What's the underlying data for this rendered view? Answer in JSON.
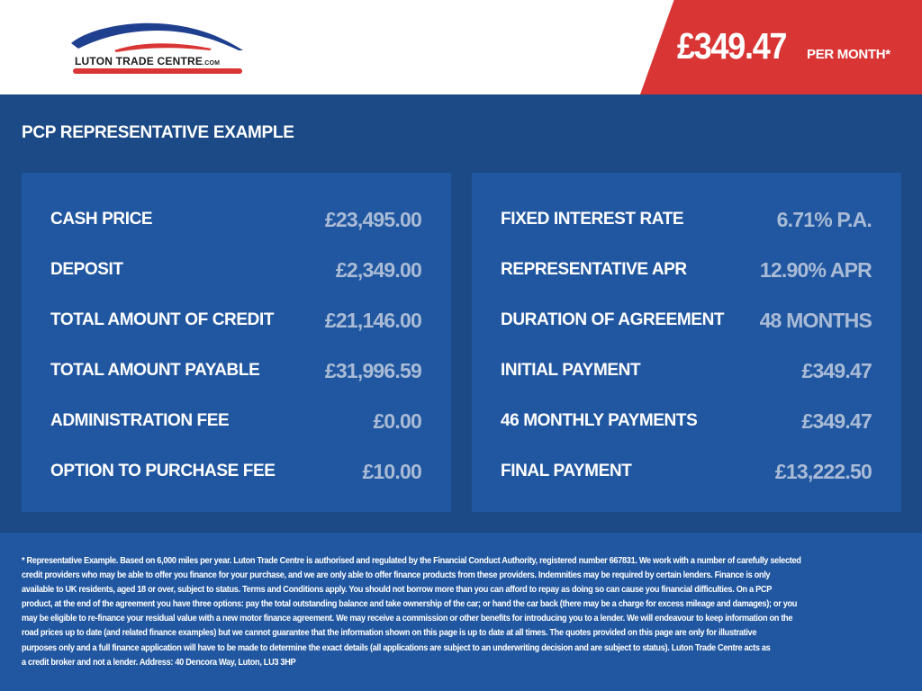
{
  "header": {
    "logo_text": "LUTON TRADE CENTRE",
    "logo_suffix": ".COM",
    "price": "£349.47",
    "price_suffix": "PER MONTH*",
    "accent": "#d93535",
    "brand": "#1c4a86"
  },
  "title": "PCP REPRESENTATIVE EXAMPLE",
  "left_rows": [
    {
      "label": "CASH PRICE",
      "value": "£23,495.00"
    },
    {
      "label": "DEPOSIT",
      "value": "£2,349.00"
    },
    {
      "label": "TOTAL AMOUNT OF CREDIT",
      "value": "£21,146.00"
    },
    {
      "label": "TOTAL AMOUNT PAYABLE",
      "value": "£31,996.59"
    },
    {
      "label": "ADMINISTRATION FEE",
      "value": "£0.00"
    },
    {
      "label": "OPTION TO PURCHASE FEE",
      "value": "£10.00"
    }
  ],
  "right_rows": [
    {
      "label": "FIXED INTEREST RATE",
      "value": "6.71% P.A."
    },
    {
      "label": "REPRESENTATIVE APR",
      "value": "12.90% APR"
    },
    {
      "label": "DURATION OF AGREEMENT",
      "value": "48 MONTHS"
    },
    {
      "label": "INITIAL PAYMENT",
      "value": "£349.47"
    },
    {
      "label": "46 MONTHLY PAYMENTS",
      "value": "£349.47"
    },
    {
      "label": "FINAL PAYMENT",
      "value": "£13,222.50"
    }
  ],
  "disclaimer": [
    "* Representative Example. Based on 6,000 miles per year. Luton Trade Centre is authorised and regulated by the Financial Conduct Authority, registered number 667831. We work with a number of carefully selected",
    "credit providers who may be able to offer you finance for your purchase, and we are only able to offer finance products from these providers. Indemnities may be required by certain lenders. Finance is only",
    "available to UK residents, aged 18 or over, subject to status. Terms and Conditions apply. You should not borrow more than you can afford to repay as doing so can cause you financial difficulties. On a PCP",
    "product, at the end of the agreement you have three options: pay the total outstanding balance and take ownership of the car; or hand the car back (there may be a charge for excess mileage and damages); or you",
    "may be eligible to re-finance your residual value with a new motor finance agreement. We may receive a commission or other benefits for introducing you to a lender. We will endeavour to keep information on the",
    "road prices up to date (and related finance examples) but we cannot guarantee that the information shown on this page is up to date at all times. The quotes provided on this page are only for illustrative",
    "purposes only and a full finance application will have to be made to determine the exact details (all applications are subject to an underwriting decision and are subject to status). Luton Trade Centre acts as",
    "a credit broker and not a lender. Address: 40 Dencora Way, Luton, LU3 3HP"
  ]
}
